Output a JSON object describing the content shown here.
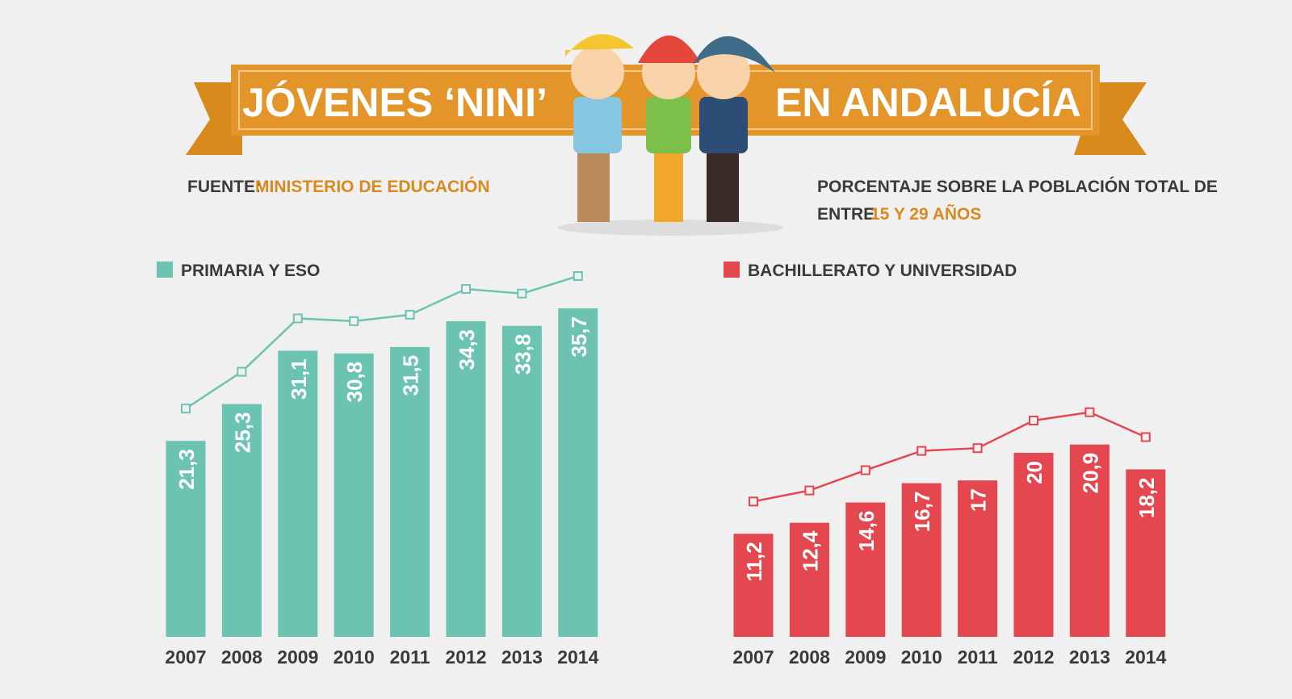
{
  "header": {
    "title_left": "JÓVENES ‘NINI’",
    "title_right": "EN ANDALUCÍA"
  },
  "source": {
    "label": "FUENTE:",
    "name": "MINISTERIO DE EDUCACIÓN"
  },
  "note": {
    "line1": "PORCENTAJE SOBRE LA POBLACIÓN TOTAL DE",
    "line2_prefix": "ENTRE",
    "line2_highlight": "15 Y 29 AÑOS"
  },
  "chart_data": [
    {
      "type": "bar",
      "categories": [
        "2007",
        "2008",
        "2009",
        "2010",
        "2011",
        "2012",
        "2013",
        "2014"
      ],
      "series": [
        {
          "name": "PRIMARIA Y ESO",
          "color": "#6cc3b2",
          "values": [
            21.3,
            25.3,
            31.1,
            30.8,
            31.5,
            34.3,
            33.8,
            35.7
          ],
          "value_labels": [
            "21,3",
            "25,3",
            "31,1",
            "30,8",
            "31,5",
            "34,3",
            "33,8",
            "35,7"
          ]
        }
      ]
    },
    {
      "type": "bar",
      "categories": [
        "2007",
        "2008",
        "2009",
        "2010",
        "2011",
        "2012",
        "2013",
        "2014"
      ],
      "series": [
        {
          "name": "BACHILLERATO Y UNIVERSIDAD",
          "color": "#e4474f",
          "values": [
            11.2,
            12.4,
            14.6,
            16.7,
            17,
            20,
            20.9,
            18.2
          ],
          "value_labels": [
            "11,2",
            "12,4",
            "14,6",
            "16,7",
            "17",
            "20",
            "20,9",
            "18,2"
          ]
        }
      ]
    }
  ]
}
